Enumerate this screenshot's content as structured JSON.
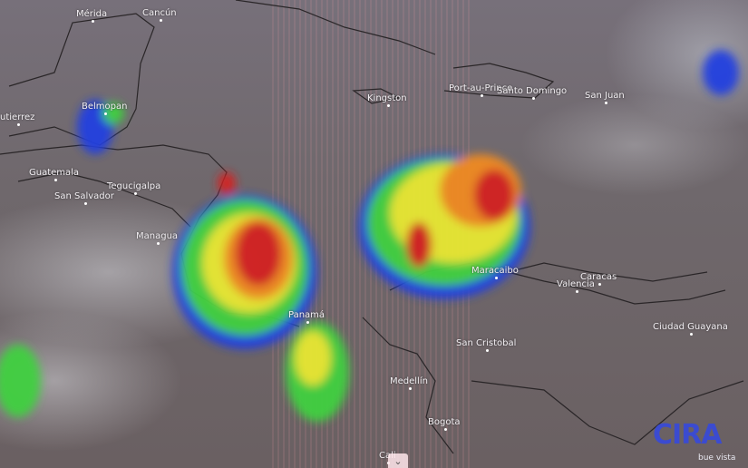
{
  "map": {
    "type": "infrared satellite imagery with enhanced cloud-top colors",
    "cities": [
      {
        "name": "Mérida"
      },
      {
        "name": "Cancún"
      },
      {
        "name": "Belmopan"
      },
      {
        "name": "utierrez"
      },
      {
        "name": "Guatemala"
      },
      {
        "name": "San Salvador"
      },
      {
        "name": "Tegucigalpa"
      },
      {
        "name": "Managua"
      },
      {
        "name": "Kingston"
      },
      {
        "name": "Port-au-Prince"
      },
      {
        "name": "Santo Domingo"
      },
      {
        "name": "San Juan"
      },
      {
        "name": "Caracas"
      },
      {
        "name": "Valencia"
      },
      {
        "name": "Maracaibo"
      },
      {
        "name": "Panamá"
      },
      {
        "name": "San Cristobal"
      },
      {
        "name": "Medellín"
      },
      {
        "name": "Bogota"
      },
      {
        "name": "Cali"
      },
      {
        "name": "Ciudad Guayana"
      }
    ],
    "colors": {
      "intense": "#d42020",
      "strong": "#f08a20",
      "moderate": "#e8e830",
      "light": "#40d040",
      "weak": "#2040e0"
    }
  },
  "logo": {
    "text": "CIRA",
    "subtitle": "bue vista"
  },
  "controls": {
    "expand_icon": "chevron-down-icon",
    "expand_glyph": "⌄"
  }
}
